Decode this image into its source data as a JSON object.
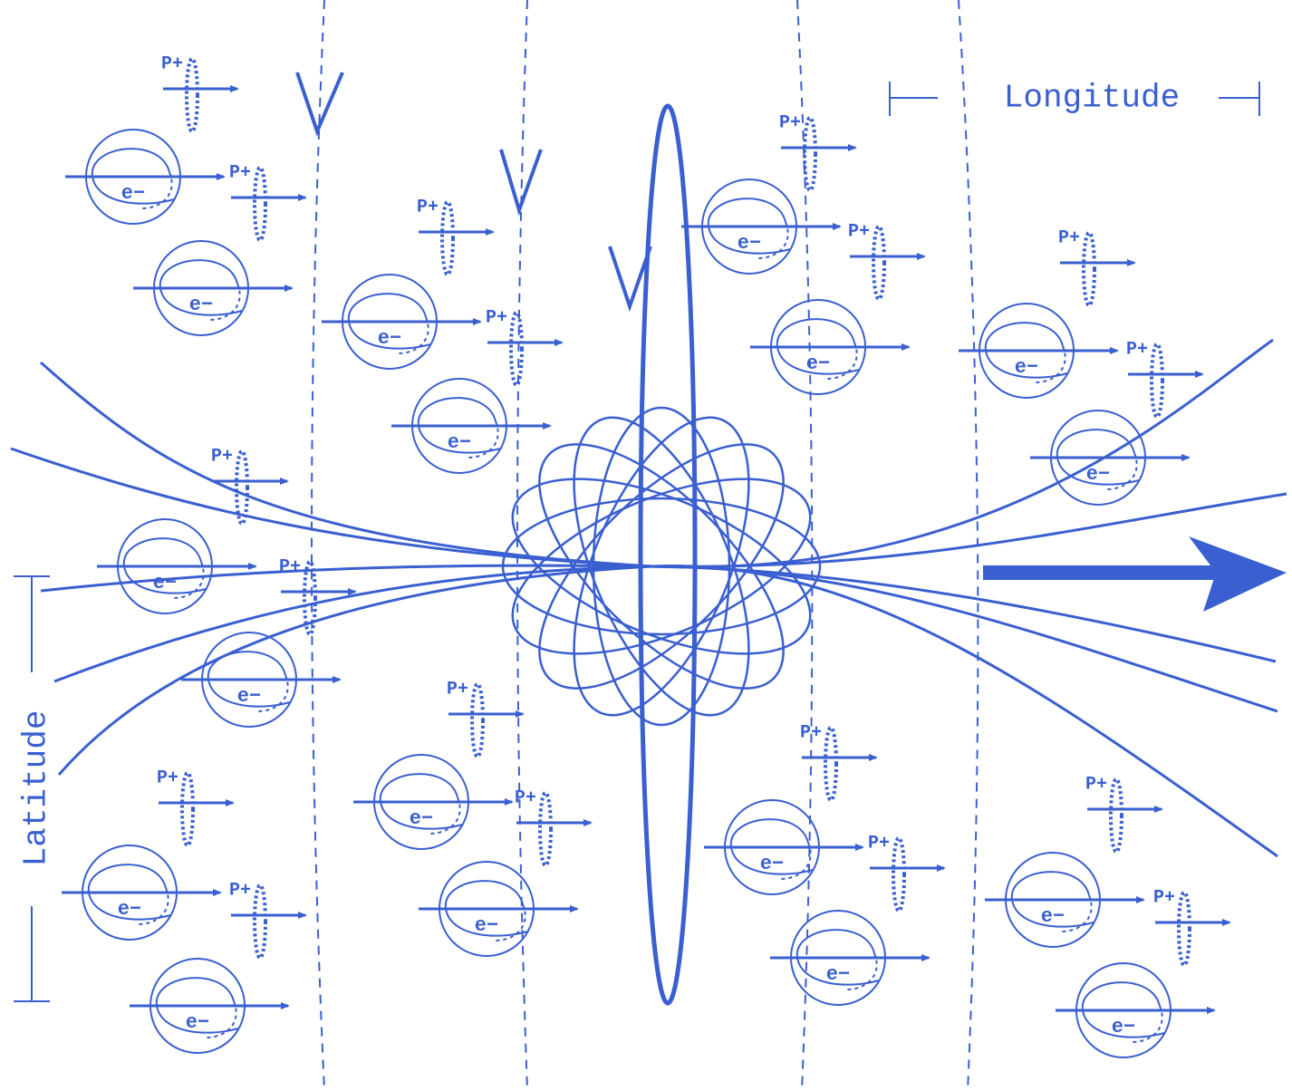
{
  "longitude_label": "Longitude",
  "latitude_label": "Latitude",
  "electrons": [
    "e−",
    "e−",
    "e−",
    "e−",
    "e−",
    "e−",
    "e−",
    "e−",
    "e−",
    "e−",
    "e−",
    "e−",
    "e−",
    "e−",
    "e−",
    "e−",
    "e−",
    "e−"
  ],
  "protons": [
    "P+",
    "P+",
    "P+",
    "P+",
    "P+",
    "P+",
    "P+",
    "P+",
    "P+",
    "P+",
    "P+",
    "P+",
    "P+",
    "P+",
    "P+",
    "P+",
    "P+",
    "P+"
  ]
}
